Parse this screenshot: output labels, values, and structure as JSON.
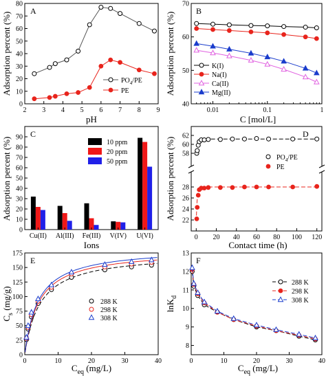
{
  "chart_data": [
    {
      "panel": "A",
      "type": "line",
      "xlabel": "pH",
      "ylabel": "Adsorption percent (%)",
      "xlim": [
        2,
        9
      ],
      "ylim": [
        0,
        80
      ],
      "xticks": [
        "2",
        "3",
        "4",
        "5",
        "6",
        "7",
        "8",
        "9"
      ],
      "yticks": [
        "0",
        "10",
        "20",
        "30",
        "40",
        "50",
        "60",
        "70",
        "80"
      ],
      "legend_position": "bottom-right",
      "series": [
        {
          "name": "PO4/PE",
          "marker": "open-circle",
          "color": "#000000",
          "line_color": "#555555",
          "x": [
            2.5,
            3.3,
            3.6,
            4.2,
            4.8,
            5.4,
            6.0,
            6.5,
            7.0,
            8.0,
            8.8
          ],
          "y": [
            24,
            29,
            32,
            35,
            42,
            63,
            77,
            76,
            72,
            64,
            58
          ]
        },
        {
          "name": "PE",
          "marker": "filled-circle",
          "color": "#e8241c",
          "line_color": "#e8241c",
          "x": [
            2.5,
            3.3,
            3.6,
            4.2,
            4.8,
            5.4,
            6.0,
            6.5,
            7.0,
            8.0,
            8.8
          ],
          "y": [
            4,
            5,
            6,
            8,
            9,
            13,
            30,
            35,
            33,
            27,
            24
          ]
        }
      ]
    },
    {
      "panel": "B",
      "type": "line",
      "xlabel": "C [mol/L]",
      "ylabel": "Adsorption percent (%)",
      "xscale": "log",
      "xlim": [
        0.004,
        1
      ],
      "ylim": [
        40,
        70
      ],
      "xticks": [
        "0.01",
        "0.1",
        "1"
      ],
      "yticks": [
        "40",
        "50",
        "60",
        "70"
      ],
      "legend_position": "bottom-left",
      "series": [
        {
          "name": "K(I)",
          "marker": "open-circle",
          "color": "#000000",
          "x": [
            0.005,
            0.01,
            0.02,
            0.05,
            0.1,
            0.2,
            0.5,
            0.8
          ],
          "y": [
            64,
            63.8,
            63.6,
            63.4,
            63.3,
            63.1,
            62.9,
            62.7
          ]
        },
        {
          "name": "Na(I)",
          "marker": "filled-circle",
          "color": "#e8241c",
          "x": [
            0.005,
            0.01,
            0.02,
            0.05,
            0.1,
            0.2,
            0.5,
            0.8
          ],
          "y": [
            62.5,
            62.2,
            61.9,
            61.5,
            61.2,
            60.7,
            60,
            59.5
          ]
        },
        {
          "name": "Ca(II)",
          "marker": "open-triangle",
          "color": "#e060e0",
          "x": [
            0.005,
            0.01,
            0.02,
            0.05,
            0.1,
            0.2,
            0.5,
            0.8
          ],
          "y": [
            56,
            55.2,
            54.3,
            53,
            51.8,
            50.3,
            48,
            46.5
          ]
        },
        {
          "name": "Mg(II)",
          "marker": "filled-triangle",
          "color": "#1a3ccc",
          "x": [
            0.005,
            0.01,
            0.02,
            0.05,
            0.1,
            0.2,
            0.5,
            0.8
          ],
          "y": [
            58,
            57.2,
            56.3,
            55.1,
            54,
            52.7,
            50.6,
            49.2
          ]
        }
      ]
    },
    {
      "panel": "C",
      "type": "bar",
      "xlabel": "Ions",
      "ylabel": "Adsorption percent (%)",
      "ylim": [
        0,
        100
      ],
      "yticks": [
        "0",
        "10",
        "20",
        "30",
        "40",
        "50",
        "60",
        "70",
        "80",
        "90"
      ],
      "legend_position": "top-right",
      "categories": [
        "Cu(II)",
        "Al(III)",
        "Fe(III)",
        "V(IV)",
        "U(VI)"
      ],
      "series": [
        {
          "name": "10 ppm",
          "color": "#000000",
          "values": [
            32,
            23,
            25.5,
            8,
            89
          ]
        },
        {
          "name": "20 ppm",
          "color": "#f01818",
          "values": [
            22,
            16,
            11,
            7.5,
            85
          ]
        },
        {
          "name": "50 ppm",
          "color": "#2020e8",
          "values": [
            19,
            8.5,
            4.5,
            7,
            61
          ]
        }
      ]
    },
    {
      "panel": "D",
      "type": "scatter",
      "xlabel": "Contact time (h)",
      "ylabel": "Adsorption percent (%)",
      "xlim": [
        -5,
        125
      ],
      "axis_break": true,
      "upper_ylim": [
        56,
        64
      ],
      "lower_ylim": [
        20,
        30
      ],
      "xticks": [
        "0",
        "20",
        "40",
        "60",
        "80",
        "100",
        "120"
      ],
      "yticks_upper": [
        "58",
        "60",
        "62"
      ],
      "yticks_lower": [
        "22",
        "24",
        "26",
        "28"
      ],
      "legend_position": "center-right",
      "series": [
        {
          "name": "PO4/PE",
          "marker": "open-circle",
          "color": "#000000",
          "x": [
            0.5,
            1,
            2,
            3,
            5,
            8,
            12,
            24,
            36,
            48,
            60,
            72,
            96,
            120
          ],
          "y": [
            58,
            58.6,
            59.8,
            60.6,
            61,
            61,
            61.1,
            61.1,
            61.2,
            61.2,
            61.3,
            61.2,
            61.2,
            61.2
          ]
        },
        {
          "name": "PE",
          "marker": "filled-circle",
          "color": "#e8241c",
          "x": [
            0.5,
            1,
            2,
            3,
            5,
            8,
            12,
            24,
            36,
            48,
            60,
            72,
            96,
            120
          ],
          "y": [
            22.2,
            24.3,
            26.5,
            27.5,
            27.8,
            27.8,
            27.9,
            27.9,
            27.9,
            28,
            28,
            28,
            28,
            28.1
          ]
        }
      ]
    },
    {
      "panel": "E",
      "type": "scatter",
      "xlabel": "C eq (mg/L)",
      "ylabel": "C s (mg/g)",
      "xlim": [
        0,
        40
      ],
      "ylim": [
        0,
        175
      ],
      "xticks": [
        "0",
        "10",
        "20",
        "30",
        "40"
      ],
      "yticks": [
        "0",
        "25",
        "50",
        "75",
        "100",
        "125",
        "150",
        "175"
      ],
      "legend_position": "center-right",
      "series": [
        {
          "name": "288 K",
          "marker": "open-circle",
          "color": "#000000",
          "line_color": "#000000",
          "x": [
            0.5,
            1,
            2,
            4,
            8,
            14,
            24,
            32,
            38
          ],
          "y": [
            26,
            44,
            65,
            88,
            112,
            133,
            146,
            151,
            154
          ]
        },
        {
          "name": "298 K",
          "marker": "open-circle-red",
          "color": "#e8241c",
          "line_color": "#e8241c",
          "x": [
            0.5,
            1,
            2,
            4,
            8,
            14,
            24,
            32,
            38
          ],
          "y": [
            28,
            47,
            69,
            92,
            116,
            139,
            151,
            156,
            159
          ]
        },
        {
          "name": "308 K",
          "marker": "open-triangle",
          "color": "#1a3ccc",
          "line_color": "#1a3ccc",
          "x": [
            0.5,
            1,
            2,
            4,
            8,
            14,
            24,
            32,
            38
          ],
          "y": [
            30,
            50,
            73,
            96,
            120,
            142,
            155,
            160,
            163
          ]
        }
      ]
    },
    {
      "panel": "F",
      "type": "scatter",
      "xlabel": "C eq (mg/L)",
      "ylabel": "lnK d",
      "xlim": [
        0,
        40
      ],
      "ylim": [
        7.5,
        13
      ],
      "xticks": [
        "0",
        "10",
        "20",
        "30",
        "40"
      ],
      "yticks": [
        "8",
        "9",
        "10",
        "11",
        "12",
        "13"
      ],
      "legend_position": "top-right",
      "series": [
        {
          "name": "288 K",
          "marker": "open-circle",
          "color": "#000000",
          "line_color": "#000000",
          "x": [
            0.3,
            0.8,
            2,
            4,
            8,
            13,
            20,
            26,
            33,
            38
          ],
          "y": [
            12.0,
            11.2,
            10.7,
            10.2,
            9.8,
            9.4,
            9.0,
            8.8,
            8.5,
            8.3
          ]
        },
        {
          "name": "298 K",
          "marker": "filled-circle",
          "color": "#e8241c",
          "line_color": "#e8241c",
          "x": [
            0.3,
            0.8,
            2,
            4,
            8,
            13,
            20,
            26,
            33,
            38
          ],
          "y": [
            12.1,
            11.3,
            10.8,
            10.3,
            9.8,
            9.4,
            9.05,
            8.8,
            8.55,
            8.35
          ]
        },
        {
          "name": "308 K",
          "marker": "open-triangle",
          "color": "#1a3ccc",
          "line_color": "#1a3ccc",
          "x": [
            0.3,
            0.8,
            2,
            4,
            8,
            13,
            20,
            26,
            33,
            38
          ],
          "y": [
            12.2,
            11.35,
            10.85,
            10.35,
            9.85,
            9.45,
            9.1,
            8.85,
            8.6,
            8.4
          ]
        }
      ]
    }
  ]
}
